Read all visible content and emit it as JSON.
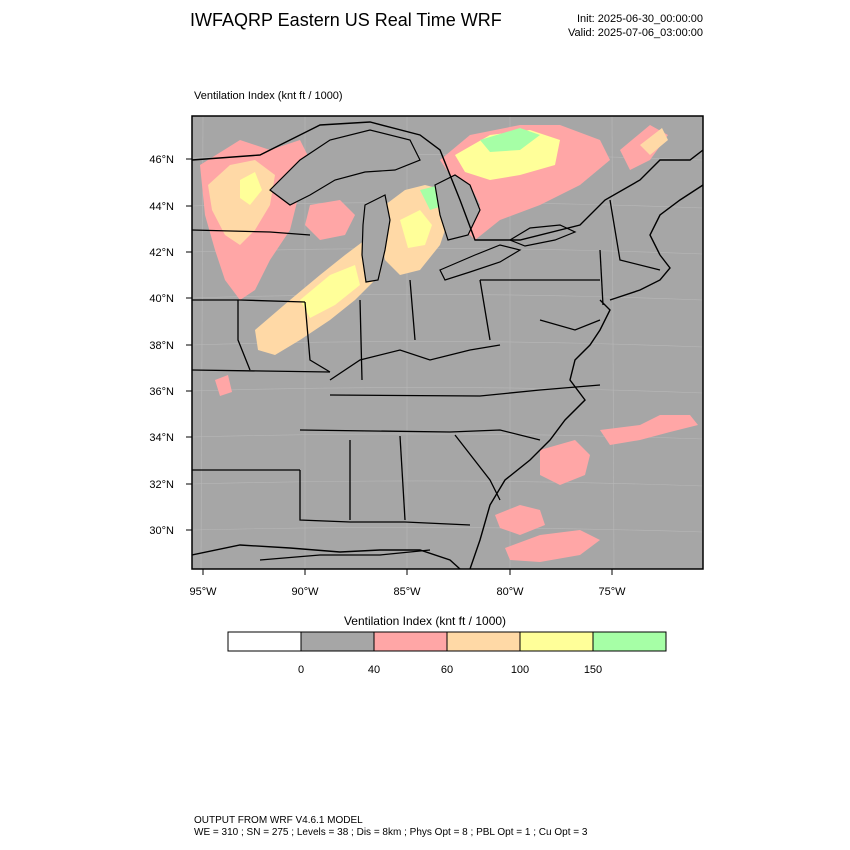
{
  "header": {
    "title": "IWFAQRP Eastern US Real Time WRF",
    "init": "Init: 2025-06-30_00:00:00",
    "valid": "Valid: 2025-07-06_03:00:00"
  },
  "map": {
    "label": "Ventilation Index   (knt ft / 1000)",
    "lat_labels": [
      "46°N",
      "44°N",
      "42°N",
      "40°N",
      "38°N",
      "36°N",
      "34°N",
      "32°N",
      "30°N"
    ],
    "lon_labels": [
      "95°W",
      "90°W",
      "85°W",
      "80°W",
      "75°W"
    ],
    "colors": {
      "land": "#a6a6a6",
      "ocean": "#a6a6a6",
      "lake": "#a6a6a6",
      "border": "#000000"
    }
  },
  "colorbar": {
    "title": "Ventilation Index  (knt ft / 1000)",
    "bins": [
      {
        "color": "#ffffff"
      },
      {
        "color": "#a6a6a6"
      },
      {
        "color": "#ffa6a6"
      },
      {
        "color": "#ffd9a6"
      },
      {
        "color": "#ffff99"
      },
      {
        "color": "#a6ffa6"
      }
    ],
    "tick_labels": [
      "0",
      "40",
      "60",
      "100",
      "150"
    ]
  },
  "footer": {
    "line1": "OUTPUT FROM WRF V4.6.1 MODEL",
    "line2": "WE = 310 ; SN = 275 ; Levels = 38 ; Dis = 8km ; Phys Opt = 8 ; PBL Opt = 1 ; Cu Opt = 3"
  }
}
